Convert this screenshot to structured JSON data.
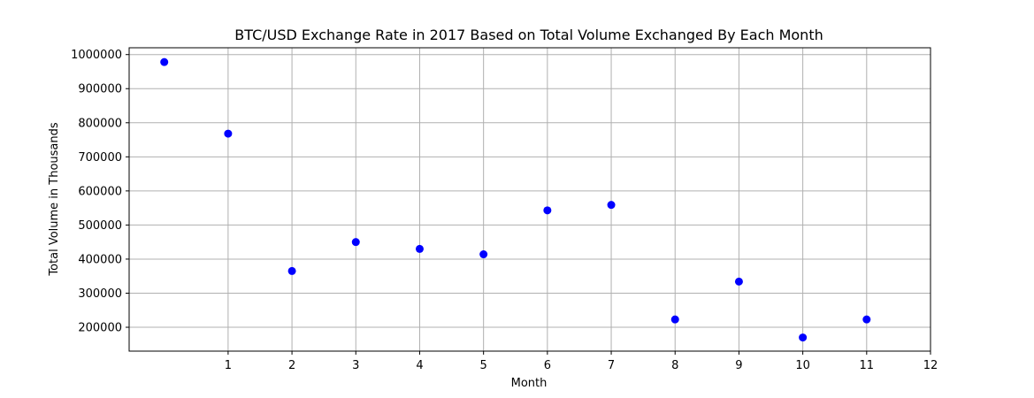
{
  "chart_data": {
    "type": "scatter",
    "title": "BTC/USD Exchange Rate in 2017 Based on Total Volume Exchanged By Each Month",
    "xlabel": "Month",
    "ylabel": "Total Volume in Thousands",
    "x": [
      0,
      1,
      2,
      3,
      4,
      5,
      6,
      7,
      8,
      9,
      10,
      11
    ],
    "series": [
      {
        "values": [
          978000,
          768000,
          365000,
          450000,
          430000,
          414000,
          543000,
          559000,
          223000,
          334000,
          170000,
          223000
        ]
      }
    ],
    "xlim": [
      -0.55,
      12
    ],
    "ylim": [
      130000,
      1020000
    ],
    "xticks": [
      "1",
      "2",
      "3",
      "4",
      "5",
      "6",
      "7",
      "8",
      "9",
      "10",
      "11",
      "12"
    ],
    "yticks": [
      "200000",
      "300000",
      "400000",
      "500000",
      "600000",
      "700000",
      "800000",
      "900000",
      "1000000"
    ],
    "grid": true,
    "marker_color": "#0000ff",
    "grid_color": "#b0b0b0"
  }
}
